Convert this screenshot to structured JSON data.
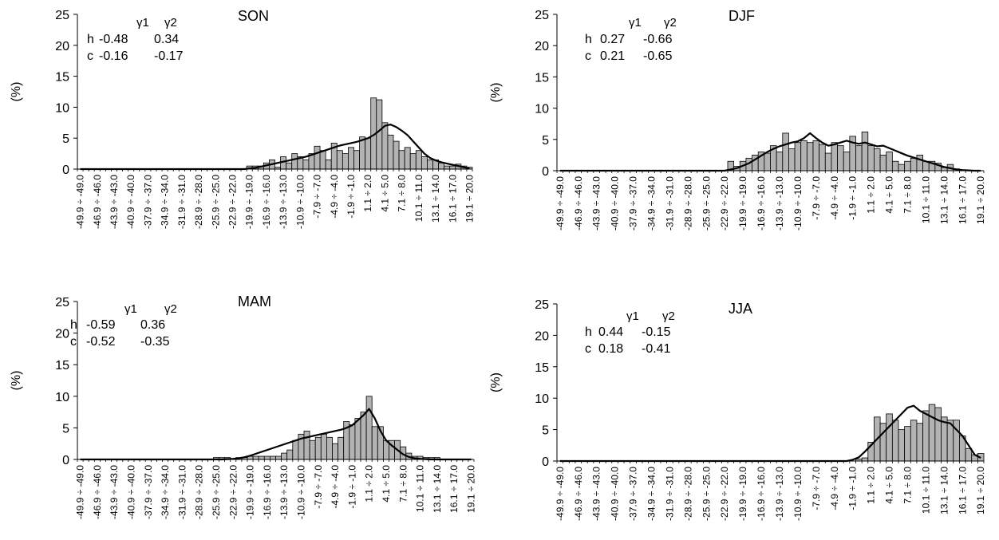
{
  "colors": {
    "bar_fill": "#b3b3b3",
    "bar_stroke": "#000000",
    "line": "#000000",
    "axis": "#000000"
  },
  "categories": [
    "-49.9 ÷ -49.0",
    "-48.9 ÷ -48.0",
    "-47.9 ÷ -47.0",
    "-46.9 ÷ -46.0",
    "-45.9 ÷ -45.0",
    "-44.9 ÷ -44.0",
    "-43.9 ÷ -43.0",
    "-42.9 ÷ -42.0",
    "-41.9 ÷ -41.0",
    "-40.9 ÷ -40.0",
    "-39.9 ÷ -39.0",
    "-38.9 ÷ -38.0",
    "-37.9 ÷ -37.0",
    "-36.9 ÷ -36.0",
    "-35.9 ÷ -35.0",
    "-34.9 ÷ -34.0",
    "-33.9 ÷ -33.0",
    "-32.9 ÷ -32.0",
    "-31.9 ÷ -31.0",
    "-30.9 ÷ -30.0",
    "-29.9 ÷ -29.0",
    "-28.9 ÷ -28.0",
    "-27.9 ÷ -27.0",
    "-26.9 ÷ -26.0",
    "-25.9 ÷ -25.0",
    "-24.9 ÷ -24.0",
    "-23.9 ÷ -23.0",
    "-22.9 ÷ -22.0",
    "-21.9 ÷ -21.0",
    "-20.9 ÷ -20.0",
    "-19.9 ÷ -19.0",
    "-18.9 ÷ -18.0",
    "-17.9 ÷ -17.0",
    "-16.9 ÷ -16.0",
    "-15.9 ÷ -15.0",
    "-14.9 ÷ -14.0",
    "-13.9 ÷ -13.0",
    "-12.9 ÷ -12.0",
    "-11.9 ÷ -11.0",
    "-10.9 ÷ -10.0",
    "-9.9 ÷ -9.0",
    "-8.9 ÷ -8.0",
    "-7.9 ÷ -7.0",
    "-6.9 ÷ -6.0",
    "-5.9 ÷ -5.0",
    "-4.9 ÷ -4.0",
    "-3.9 ÷ -3.0",
    "-2.9 ÷ -2.0",
    "-1.9 ÷ -1.0",
    "-0.9 ÷ 0.0",
    "0.1 ÷ 1.0",
    "1.1 ÷ 2.0",
    "2.1 ÷ 3.0",
    "3.1 ÷ 4.0",
    "4.1 ÷ 5.0",
    "5.1 ÷ 6.0",
    "6.1 ÷ 7.0",
    "7.1 ÷ 8.0",
    "8.1 ÷ 9.0",
    "9.1 ÷ 10.0",
    "10.1 ÷ 11.0",
    "11.1 ÷ 12.0",
    "12.1 ÷ 13.0",
    "13.1 ÷ 14.0",
    "14.1 ÷ 15.0",
    "15.1 ÷ 16.0",
    "16.1 ÷ 17.0",
    "17.1 ÷ 18.0",
    "18.1 ÷ 19.0",
    "19.1 ÷ 20.0"
  ],
  "tick_label_every": 3,
  "chart_data": [
    {
      "type": "bar",
      "title": "SON",
      "ylabel": "(%)",
      "ylim": [
        0,
        25
      ],
      "yticks": [
        0,
        5,
        10,
        15,
        20,
        25
      ],
      "stats": {
        "col1": "γ1",
        "col2": "γ2",
        "rows": [
          {
            "label": "h",
            "v1": "-0.48",
            "v2": "0.34"
          },
          {
            "label": "c",
            "v1": "-0.16",
            "v2": "-0.17"
          }
        ]
      },
      "series": [
        {
          "name": "h",
          "kind": "bar",
          "values": [
            0,
            0,
            0,
            0,
            0,
            0,
            0,
            0,
            0,
            0,
            0,
            0,
            0,
            0,
            0,
            0,
            0,
            0,
            0,
            0,
            0,
            0,
            0,
            0,
            0,
            0,
            0,
            0,
            0,
            0,
            0.5,
            0.5,
            0.5,
            1.0,
            1.5,
            0.3,
            2.0,
            1.0,
            2.5,
            2.0,
            1.5,
            2.5,
            3.7,
            3.0,
            1.5,
            4.2,
            3.0,
            2.5,
            3.5,
            3.0,
            5.2,
            5.0,
            11.5,
            11.2,
            7.5,
            5.5,
            4.5,
            3.0,
            3.5,
            2.5,
            3.0,
            2.0,
            1.5,
            1.5,
            1.0,
            0.5,
            0.5,
            0.8,
            0.5,
            0.3
          ]
        },
        {
          "name": "c",
          "kind": "line",
          "values": [
            0,
            0,
            0,
            0,
            0,
            0,
            0,
            0,
            0,
            0,
            0,
            0,
            0,
            0,
            0,
            0,
            0,
            0,
            0,
            0,
            0,
            0,
            0,
            0,
            0,
            0,
            0,
            0,
            0,
            0,
            0.1,
            0.2,
            0.4,
            0.6,
            0.8,
            1.0,
            1.2,
            1.4,
            1.6,
            1.8,
            2.0,
            2.3,
            2.6,
            2.9,
            3.2,
            3.5,
            3.8,
            4.0,
            4.2,
            4.4,
            4.7,
            5.0,
            5.5,
            6.2,
            7.0,
            7.2,
            6.8,
            6.2,
            5.5,
            4.5,
            3.5,
            2.5,
            1.8,
            1.4,
            1.1,
            0.9,
            0.7,
            0.5,
            0.3,
            0.1
          ]
        }
      ]
    },
    {
      "type": "bar",
      "title": "DJF",
      "ylabel": "(%)",
      "ylim": [
        0,
        25
      ],
      "yticks": [
        0,
        5,
        10,
        15,
        20,
        25
      ],
      "stats": {
        "col1": "γ1",
        "col2": "γ2",
        "rows": [
          {
            "label": "h",
            "v1": "0.27",
            "v2": "-0.66"
          },
          {
            "label": "c",
            "v1": "0.21",
            "v2": "-0.65"
          }
        ]
      },
      "series": [
        {
          "name": "h",
          "kind": "bar",
          "values": [
            0,
            0,
            0,
            0,
            0,
            0,
            0,
            0,
            0,
            0,
            0,
            0,
            0,
            0,
            0,
            0,
            0,
            0,
            0,
            0,
            0,
            0,
            0,
            0,
            0,
            0,
            0,
            0,
            1.5,
            0.7,
            1.5,
            2.0,
            2.5,
            3.0,
            2.8,
            4.0,
            3.0,
            6.0,
            3.5,
            4.5,
            4.8,
            4.5,
            4.8,
            4.2,
            2.8,
            4.5,
            4.0,
            3.0,
            5.5,
            4.0,
            6.2,
            4.0,
            3.5,
            2.5,
            3.0,
            1.5,
            1.0,
            1.5,
            2.0,
            2.5,
            1.5,
            1.5,
            1.2,
            0.5,
            1.0,
            0.3,
            0,
            0,
            0,
            0
          ]
        },
        {
          "name": "c",
          "kind": "line",
          "values": [
            0,
            0,
            0,
            0,
            0,
            0,
            0,
            0,
            0,
            0,
            0,
            0,
            0,
            0,
            0,
            0,
            0,
            0,
            0,
            0,
            0,
            0,
            0,
            0,
            0,
            0,
            0,
            0,
            0.2,
            0.4,
            0.8,
            1.2,
            1.8,
            2.4,
            3.0,
            3.5,
            3.9,
            4.2,
            4.5,
            4.7,
            5.2,
            6.0,
            5.2,
            4.5,
            4.0,
            4.2,
            4.5,
            4.8,
            4.5,
            4.3,
            4.5,
            4.2,
            3.9,
            4.0,
            3.6,
            3.2,
            2.8,
            2.4,
            2.1,
            1.8,
            1.5,
            1.2,
            0.9,
            0.6,
            0.4,
            0.2,
            0.1,
            0.05,
            0,
            0
          ]
        }
      ]
    },
    {
      "type": "bar",
      "title": "MAM",
      "ylabel": "(%)",
      "ylim": [
        0,
        25
      ],
      "yticks": [
        0,
        5,
        10,
        15,
        20,
        25
      ],
      "stats": {
        "col1": "γ1",
        "col2": "γ2",
        "rows": [
          {
            "label": "h",
            "v1": "-0.59",
            "v2": "0.36"
          },
          {
            "label": "c",
            "v1": "-0.52",
            "v2": "-0.35"
          }
        ]
      },
      "series": [
        {
          "name": "h",
          "kind": "bar",
          "values": [
            0,
            0,
            0,
            0,
            0,
            0,
            0,
            0,
            0,
            0,
            0,
            0,
            0,
            0,
            0,
            0,
            0,
            0,
            0,
            0,
            0,
            0,
            0,
            0,
            0.3,
            0.3,
            0.3,
            0,
            0.3,
            0.3,
            0.5,
            0.5,
            0.5,
            0.5,
            0.5,
            0.5,
            1.0,
            1.5,
            3.0,
            4.0,
            4.5,
            3.0,
            3.5,
            4.0,
            3.5,
            2.5,
            3.5,
            6.0,
            5.5,
            6.5,
            7.5,
            10.0,
            5.2,
            5.2,
            3.0,
            3.0,
            3.0,
            2.0,
            1.0,
            0.5,
            0.5,
            0.3,
            0.3,
            0.3,
            0,
            0,
            0,
            0,
            0,
            0
          ]
        },
        {
          "name": "c",
          "kind": "line",
          "values": [
            0,
            0,
            0,
            0,
            0,
            0,
            0,
            0,
            0,
            0,
            0,
            0,
            0,
            0,
            0,
            0,
            0,
            0,
            0,
            0,
            0,
            0,
            0,
            0,
            0,
            0,
            0.05,
            0.1,
            0.2,
            0.35,
            0.6,
            0.9,
            1.2,
            1.5,
            1.8,
            2.1,
            2.4,
            2.7,
            3.0,
            3.3,
            3.5,
            3.7,
            3.9,
            4.1,
            4.3,
            4.5,
            4.7,
            5.0,
            5.4,
            6.2,
            7.0,
            8.0,
            6.5,
            4.5,
            3.0,
            2.2,
            1.5,
            0.8,
            0.4,
            0.2,
            0.1,
            0.05,
            0,
            0,
            0,
            0,
            0,
            0,
            0,
            0
          ]
        }
      ]
    },
    {
      "type": "bar",
      "title": "JJA",
      "ylabel": "(%)",
      "ylim": [
        0,
        25
      ],
      "yticks": [
        0,
        5,
        10,
        15,
        20,
        25
      ],
      "stats": {
        "col1": "γ1",
        "col2": "γ2",
        "rows": [
          {
            "label": "h",
            "v1": "0.44",
            "v2": "-0.15"
          },
          {
            "label": "c",
            "v1": "0.18",
            "v2": "-0.41"
          }
        ]
      },
      "series": [
        {
          "name": "h",
          "kind": "bar",
          "values": [
            0,
            0,
            0,
            0,
            0,
            0,
            0,
            0,
            0,
            0,
            0,
            0,
            0,
            0,
            0,
            0,
            0,
            0,
            0,
            0,
            0,
            0,
            0,
            0,
            0,
            0,
            0,
            0,
            0,
            0,
            0,
            0,
            0,
            0,
            0,
            0,
            0,
            0,
            0,
            0,
            0,
            0,
            0,
            0,
            0,
            0,
            0,
            0,
            0,
            0.3,
            0.5,
            3.0,
            7.0,
            6.0,
            7.5,
            6.5,
            5.0,
            5.5,
            6.5,
            6.0,
            8.0,
            9.0,
            8.5,
            7.0,
            6.5,
            6.5,
            4.0,
            2.0,
            1.0,
            1.2
          ]
        },
        {
          "name": "c",
          "kind": "line",
          "values": [
            0,
            0,
            0,
            0,
            0,
            0,
            0,
            0,
            0,
            0,
            0,
            0,
            0,
            0,
            0,
            0,
            0,
            0,
            0,
            0,
            0,
            0,
            0,
            0,
            0,
            0,
            0,
            0,
            0,
            0,
            0,
            0,
            0,
            0,
            0,
            0,
            0,
            0,
            0,
            0,
            0,
            0,
            0,
            0,
            0,
            0,
            0,
            0,
            0.2,
            0.6,
            1.5,
            2.5,
            3.5,
            4.5,
            5.5,
            6.5,
            7.5,
            8.5,
            8.8,
            8.0,
            7.5,
            7.0,
            6.5,
            6.2,
            6.0,
            5.0,
            4.0,
            2.5,
            1.0,
            0.5
          ]
        }
      ]
    }
  ]
}
